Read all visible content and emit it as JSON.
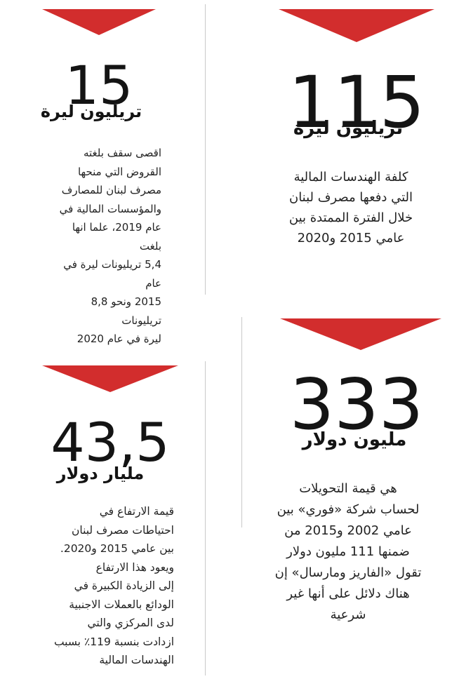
{
  "style": {
    "accent_color": "#d22d2d",
    "divider_color": "#c9c9c9"
  },
  "stats": {
    "top_right": {
      "value": "115",
      "unit": "تريليون ليرة",
      "description": [
        "كلفة الهندسات المالية",
        "التي دفعها مصرف لبنان",
        "خلال الفترة الممتدة بين",
        "عامي 2015 و2020"
      ]
    },
    "top_left": {
      "value": "15",
      "unit": "تريليون ليرة",
      "description": [
        "اقصى سقف بلغته",
        "القروض التي منحها",
        "مصرف لبنان للمصارف",
        "والمؤسسات المالية في",
        "عام 2019، علما انها بلغت",
        "5,4 تريليونات ليرة في عام",
        "2015 ونحو 8,8 تريليونات",
        "ليرة في عام 2020"
      ]
    },
    "bottom_right": {
      "value": "333",
      "unit": "مليون دولار",
      "description": [
        "هي قيمة التحويلات",
        "لحساب شركة «فوري» بين",
        "عامي 2002 و2015 من",
        "ضمنها 111 مليون دولار",
        "تقول «الفاريز ومارسال» إن",
        "هناك دلائل على أنها غير",
        "شرعية"
      ]
    },
    "bottom_left": {
      "value": "43,5",
      "unit": "مليار دولار",
      "description": [
        "قيمة الارتفاع في",
        "احتياطات مصرف لبنان",
        "بين عامي 2015 و2020.",
        "ويعود هذا الارتفاع",
        "إلى الزيادة الكبيرة في",
        "الودائع بالعملات الاجنبية",
        "لدى المركزي والتي",
        "ازدادت بنسبة 119٪ بسبب",
        "الهندسات المالية"
      ]
    }
  }
}
